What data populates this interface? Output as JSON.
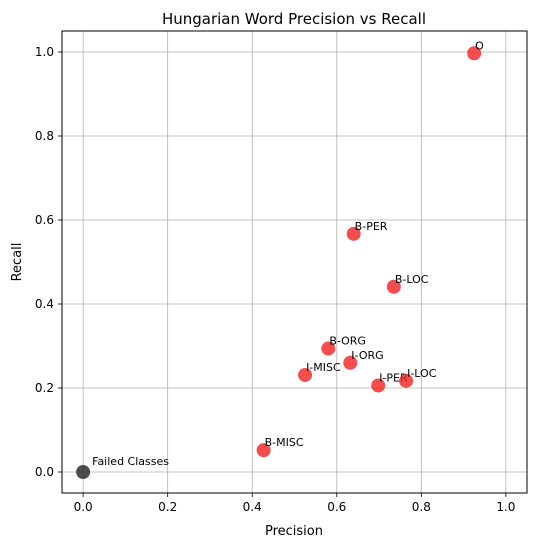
{
  "chart_data": {
    "type": "scatter",
    "title": "Hungarian Word Precision vs Recall",
    "xlabel": "Precision",
    "ylabel": "Recall",
    "xlim": [
      -0.05,
      1.05
    ],
    "ylim": [
      -0.05,
      1.05
    ],
    "xticks": [
      "0.0",
      "0.2",
      "0.4",
      "0.6",
      "0.8",
      "1.0"
    ],
    "yticks": [
      "0.0",
      "0.2",
      "0.4",
      "0.6",
      "0.8",
      "1.0"
    ],
    "grid": true,
    "colors": {
      "class": "#f02020",
      "failed": "#222222"
    },
    "points": [
      {
        "label": "O",
        "x": 0.925,
        "y": 0.997,
        "kind": "class"
      },
      {
        "label": "B-PER",
        "x": 0.64,
        "y": 0.567,
        "kind": "class"
      },
      {
        "label": "B-LOC",
        "x": 0.735,
        "y": 0.441,
        "kind": "class"
      },
      {
        "label": "B-ORG",
        "x": 0.58,
        "y": 0.294,
        "kind": "class"
      },
      {
        "label": "I-ORG",
        "x": 0.632,
        "y": 0.26,
        "kind": "class"
      },
      {
        "label": "I-MISC",
        "x": 0.525,
        "y": 0.231,
        "kind": "class"
      },
      {
        "label": "I-PER",
        "x": 0.698,
        "y": 0.206,
        "kind": "class"
      },
      {
        "label": "I-LOC",
        "x": 0.764,
        "y": 0.217,
        "kind": "class"
      },
      {
        "label": "B-MISC",
        "x": 0.427,
        "y": 0.052,
        "kind": "class"
      },
      {
        "label": "Failed Classes",
        "x": 0.0,
        "y": 0.0,
        "kind": "failed"
      }
    ]
  }
}
